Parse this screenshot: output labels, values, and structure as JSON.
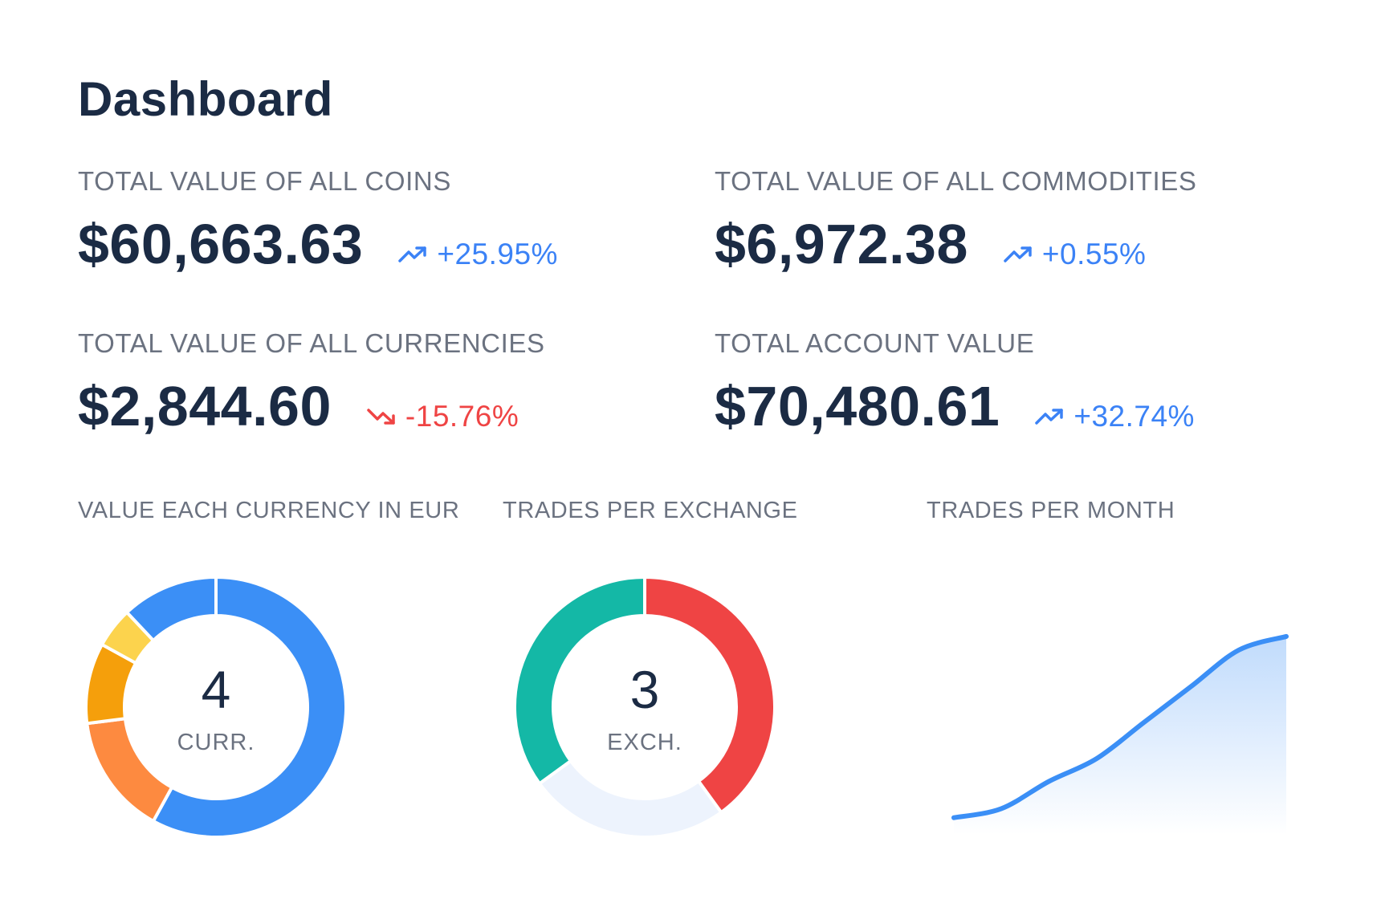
{
  "header": {
    "title": "Dashboard"
  },
  "metrics": [
    {
      "label": "TOTAL VALUE OF ALL COINS",
      "value": "$60,663.63",
      "change": "+25.95%",
      "trend": "up"
    },
    {
      "label": "TOTAL VALUE OF ALL COMMODITIES",
      "value": "$6,972.38",
      "change": "+0.55%",
      "trend": "up"
    },
    {
      "label": "TOTAL VALUE OF ALL CURRENCIES",
      "value": "$2,844.60",
      "change": "-15.76%",
      "trend": "down"
    },
    {
      "label": "TOTAL ACCOUNT VALUE",
      "value": "$70,480.61",
      "change": "+32.74%",
      "trend": "up"
    }
  ],
  "icons": {
    "up": "trending-up-icon",
    "down": "trending-down-icon"
  },
  "colors": {
    "text": "#1b2b44",
    "muted": "#6b7280",
    "up": "#3b82f6",
    "down": "#ef4444"
  },
  "charts": {
    "currencies": {
      "label": "VALUE EACH CURRENCY IN EUR",
      "count": "4",
      "unit": "CURR."
    },
    "exchanges": {
      "label": "TRADES PER EXCHANGE",
      "count": "3",
      "unit": "EXCH."
    },
    "months": {
      "label": "TRADES PER MONTH"
    }
  },
  "chart_data": [
    {
      "type": "pie",
      "title": "VALUE EACH CURRENCY IN EUR",
      "slices": [
        {
          "value": 58,
          "color": "#3b8ff6"
        },
        {
          "value": 15,
          "color": "#fd8a40"
        },
        {
          "value": 10,
          "color": "#f59f0b"
        },
        {
          "value": 5,
          "color": "#fcd34d"
        },
        {
          "value": 12,
          "color": "#3b8ff6"
        }
      ]
    },
    {
      "type": "pie",
      "title": "TRADES PER EXCHANGE",
      "slices": [
        {
          "value": 40,
          "color": "#ef4444"
        },
        {
          "value": 25,
          "color": "#edf3fd"
        },
        {
          "value": 35,
          "color": "#14b8a6"
        }
      ]
    },
    {
      "type": "area",
      "title": "TRADES PER MONTH",
      "x": [
        1,
        2,
        3,
        4,
        5,
        6,
        7,
        8
      ],
      "y": [
        2,
        4,
        10,
        15,
        23,
        31,
        39,
        42
      ],
      "ylim": [
        0,
        45
      ],
      "color": "#3b8ff6"
    }
  ]
}
